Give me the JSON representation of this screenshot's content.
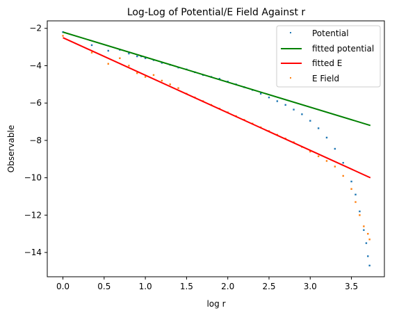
{
  "chart_data": {
    "type": "scatter",
    "title": "Log-Log of Potential/E Field Against r",
    "xlabel": "log r",
    "ylabel": "Observable",
    "xlim": [
      -0.19,
      3.9
    ],
    "ylim": [
      -15.3,
      -1.6
    ],
    "x_ticks": [
      "0.0",
      "0.5",
      "1.0",
      "1.5",
      "2.0",
      "2.5",
      "3.0",
      "3.5"
    ],
    "y_ticks": [
      "-2",
      "-4",
      "-6",
      "-8",
      "-10",
      "-12",
      "-14"
    ],
    "grid": false,
    "legend_position": "upper right",
    "legend": [
      "Potential",
      "fitted potential",
      "fitted E",
      "E Field"
    ],
    "series": [
      {
        "name": "Potential",
        "kind": "scatter",
        "color": "#1f77b4",
        "points": [
          [
            0.0,
            -2.2
          ],
          [
            0.35,
            -2.9
          ],
          [
            0.55,
            -3.2
          ],
          [
            0.69,
            -3.15
          ],
          [
            0.8,
            -3.35
          ],
          [
            0.9,
            -3.5
          ],
          [
            0.95,
            -3.5
          ],
          [
            1.0,
            -3.6
          ],
          [
            1.1,
            -3.7
          ],
          [
            1.2,
            -3.85
          ],
          [
            1.3,
            -3.95
          ],
          [
            1.4,
            -4.1
          ],
          [
            1.5,
            -4.2
          ],
          [
            1.6,
            -4.35
          ],
          [
            1.7,
            -4.5
          ],
          [
            1.8,
            -4.6
          ],
          [
            1.9,
            -4.7
          ],
          [
            2.0,
            -4.85
          ],
          [
            2.1,
            -5.0
          ],
          [
            2.2,
            -5.15
          ],
          [
            2.3,
            -5.3
          ],
          [
            2.4,
            -5.5
          ],
          [
            2.5,
            -5.7
          ],
          [
            2.6,
            -5.9
          ],
          [
            2.7,
            -6.1
          ],
          [
            2.8,
            -6.35
          ],
          [
            2.9,
            -6.6
          ],
          [
            3.0,
            -6.95
          ],
          [
            3.1,
            -7.35
          ],
          [
            3.2,
            -7.85
          ],
          [
            3.3,
            -8.45
          ],
          [
            3.4,
            -9.2
          ],
          [
            3.5,
            -10.2
          ],
          [
            3.55,
            -10.9
          ],
          [
            3.6,
            -11.8
          ],
          [
            3.65,
            -12.8
          ],
          [
            3.68,
            -13.5
          ],
          [
            3.7,
            -14.2
          ],
          [
            3.72,
            -14.7
          ]
        ]
      },
      {
        "name": "fitted potential",
        "kind": "line",
        "color": "#008000",
        "x": [
          0.0,
          3.73
        ],
        "y": [
          -2.2,
          -7.2
        ]
      },
      {
        "name": "fitted E",
        "kind": "line",
        "color": "#ff0000",
        "x": [
          0.0,
          3.73
        ],
        "y": [
          -2.5,
          -10.0
        ]
      },
      {
        "name": "E Field",
        "kind": "scatter",
        "color": "#ff7f0e",
        "points": [
          [
            0.0,
            -2.4
          ],
          [
            0.35,
            -3.3
          ],
          [
            0.55,
            -3.9
          ],
          [
            0.69,
            -3.6
          ],
          [
            0.8,
            -4.0
          ],
          [
            0.9,
            -4.4
          ],
          [
            1.0,
            -4.6
          ],
          [
            1.1,
            -4.5
          ],
          [
            1.2,
            -4.8
          ],
          [
            1.3,
            -5.0
          ],
          [
            1.4,
            -5.2
          ],
          [
            1.5,
            -5.5
          ],
          [
            1.6,
            -5.7
          ],
          [
            1.7,
            -5.9
          ],
          [
            1.8,
            -6.1
          ],
          [
            1.9,
            -6.3
          ],
          [
            2.0,
            -6.5
          ],
          [
            2.1,
            -6.7
          ],
          [
            2.2,
            -6.9
          ],
          [
            2.3,
            -7.1
          ],
          [
            2.4,
            -7.3
          ],
          [
            2.5,
            -7.5
          ],
          [
            2.6,
            -7.7
          ],
          [
            2.7,
            -7.9
          ],
          [
            2.8,
            -8.1
          ],
          [
            2.9,
            -8.35
          ],
          [
            3.0,
            -8.6
          ],
          [
            3.1,
            -8.85
          ],
          [
            3.2,
            -9.1
          ],
          [
            3.3,
            -9.4
          ],
          [
            3.4,
            -9.9
          ],
          [
            3.5,
            -10.6
          ],
          [
            3.55,
            -11.3
          ],
          [
            3.6,
            -12.0
          ],
          [
            3.65,
            -12.6
          ],
          [
            3.7,
            -13.0
          ],
          [
            3.72,
            -13.3
          ]
        ]
      }
    ]
  }
}
